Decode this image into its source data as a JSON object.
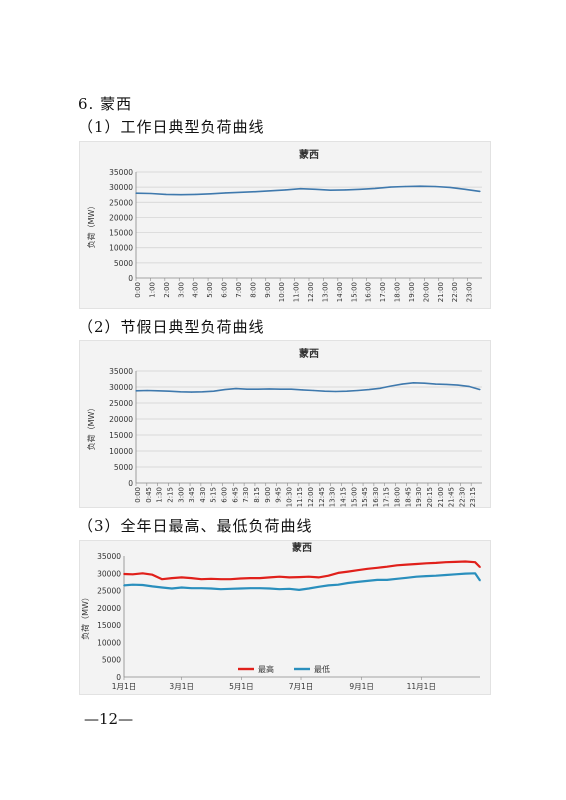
{
  "section": {
    "number": "6.",
    "name": "蒙西"
  },
  "captions": [
    "（1）工作日典型负荷曲线",
    "（2）节假日典型负荷曲线",
    "（3）全年日最高、最低负荷曲线"
  ],
  "page_number": "—12—",
  "chart_data": [
    {
      "type": "line",
      "title": "蒙西",
      "ylabel": "负荷（MW）",
      "xlabel": "",
      "ylim": [
        0,
        35000
      ],
      "yticks": [
        0,
        5000,
        10000,
        15000,
        20000,
        25000,
        30000,
        35000
      ],
      "grid": true,
      "color": "#3f79ad",
      "x_ticks": [
        "0:00",
        "1:00",
        "2:00",
        "3:00",
        "4:00",
        "5:00",
        "6:00",
        "7:00",
        "8:00",
        "9:00",
        "10:00",
        "11:00",
        "12:00",
        "13:00",
        "14:00",
        "15:00",
        "16:00",
        "17:00",
        "18:00",
        "19:00",
        "20:00",
        "21:00",
        "22:00",
        "23:00"
      ],
      "series": [
        {
          "values": [
            28000,
            27900,
            27600,
            27500,
            27600,
            27800,
            28100,
            28300,
            28500,
            28800,
            29100,
            29500,
            29300,
            29000,
            29100,
            29300,
            29600,
            30000,
            30200,
            30300,
            30200,
            29900,
            29300,
            28600
          ]
        }
      ]
    },
    {
      "type": "line",
      "title": "蒙西",
      "ylabel": "负荷（MW）",
      "xlabel": "",
      "ylim": [
        0,
        35000
      ],
      "yticks": [
        0,
        5000,
        10000,
        15000,
        20000,
        25000,
        30000,
        35000
      ],
      "grid": true,
      "color": "#3f79ad",
      "x_ticks": [
        "0:00",
        "0:45",
        "1:30",
        "2:15",
        "3:00",
        "3:45",
        "4:30",
        "5:15",
        "6:00",
        "6:45",
        "7:30",
        "8:15",
        "9:00",
        "9:45",
        "10:30",
        "11:15",
        "12:00",
        "12:45",
        "13:30",
        "14:15",
        "15:00",
        "15:45",
        "16:30",
        "17:15",
        "18:00",
        "18:45",
        "19:30",
        "20:15",
        "21:00",
        "21:45",
        "22:30",
        "23:15"
      ],
      "series": [
        {
          "values": [
            28800,
            28900,
            28800,
            28700,
            28500,
            28400,
            28500,
            28700,
            29200,
            29500,
            29300,
            29300,
            29400,
            29300,
            29300,
            29100,
            28900,
            28700,
            28600,
            28700,
            28900,
            29200,
            29600,
            30300,
            30900,
            31300,
            31200,
            30900,
            30800,
            30600,
            30200,
            29200
          ]
        }
      ]
    },
    {
      "type": "line",
      "title": "蒙西",
      "ylabel": "负荷（MW）",
      "xlabel": "",
      "ylim": [
        0,
        35000
      ],
      "yticks": [
        0,
        5000,
        10000,
        15000,
        20000,
        25000,
        30000,
        35000
      ],
      "grid": false,
      "legend": "bottom",
      "x_ticks": [
        "1月1日",
        "3月1日",
        "5月1日",
        "7月1日",
        "9月1日",
        "11月1日"
      ],
      "x_tick_days": [
        1,
        60,
        121,
        182,
        244,
        305
      ],
      "x_range_days": [
        1,
        365
      ],
      "series": [
        {
          "name": "最高",
          "color": "#e0201b",
          "x_days": [
            1,
            10,
            20,
            30,
            40,
            50,
            60,
            70,
            80,
            90,
            100,
            110,
            120,
            130,
            140,
            150,
            160,
            170,
            180,
            190,
            200,
            210,
            220,
            230,
            240,
            250,
            260,
            270,
            280,
            290,
            300,
            310,
            320,
            330,
            340,
            350,
            360,
            365
          ],
          "values": [
            29800,
            29700,
            30000,
            29600,
            28300,
            28600,
            28800,
            28600,
            28300,
            28400,
            28300,
            28300,
            28500,
            28600,
            28600,
            28800,
            29000,
            28800,
            28900,
            29000,
            28800,
            29300,
            30100,
            30500,
            30900,
            31300,
            31600,
            31900,
            32300,
            32500,
            32700,
            32900,
            33000,
            33200,
            33300,
            33400,
            33200,
            31800
          ]
        },
        {
          "name": "最低",
          "color": "#2a8fbd",
          "x_days": [
            1,
            10,
            20,
            30,
            40,
            50,
            60,
            70,
            80,
            90,
            100,
            110,
            120,
            130,
            140,
            150,
            160,
            170,
            180,
            190,
            200,
            210,
            220,
            230,
            240,
            250,
            260,
            270,
            280,
            290,
            300,
            310,
            320,
            330,
            340,
            350,
            360,
            365
          ],
          "values": [
            26500,
            26700,
            26600,
            26200,
            25900,
            25600,
            25900,
            25700,
            25700,
            25600,
            25400,
            25500,
            25600,
            25700,
            25700,
            25600,
            25400,
            25500,
            25200,
            25600,
            26100,
            26500,
            26700,
            27200,
            27500,
            27800,
            28100,
            28100,
            28400,
            28700,
            29000,
            29200,
            29300,
            29500,
            29700,
            29900,
            30000,
            27900
          ]
        }
      ]
    }
  ]
}
